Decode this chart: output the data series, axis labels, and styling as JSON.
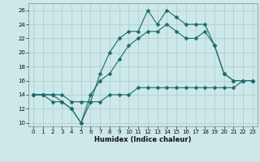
{
  "bg_color": "#cce8e8",
  "grid_color": "#aacccc",
  "line_color": "#1a6b6b",
  "line1_x": [
    0,
    1,
    2,
    3,
    4,
    5,
    6,
    7,
    8,
    9,
    10,
    11,
    12,
    13,
    14,
    15,
    16,
    17,
    18,
    19,
    20,
    21,
    22,
    23
  ],
  "line1_y": [
    14,
    14,
    14,
    13,
    12,
    10,
    13,
    17,
    20,
    22,
    23,
    23,
    26,
    24,
    26,
    25,
    24,
    24,
    24,
    21,
    17,
    16,
    16,
    16
  ],
  "line2_x": [
    0,
    1,
    2,
    3,
    4,
    5,
    6,
    7,
    8,
    9,
    10,
    11,
    12,
    13,
    14,
    15,
    16,
    17,
    18,
    19,
    20,
    21,
    22,
    23
  ],
  "line2_y": [
    14,
    14,
    13,
    13,
    12,
    10,
    14,
    16,
    17,
    19,
    21,
    22,
    23,
    23,
    24,
    23,
    22,
    22,
    23,
    21,
    17,
    16,
    16,
    16
  ],
  "line3_x": [
    0,
    1,
    2,
    3,
    4,
    5,
    6,
    7,
    8,
    9,
    10,
    11,
    12,
    13,
    14,
    15,
    16,
    17,
    18,
    19,
    20,
    21,
    22,
    23
  ],
  "line3_y": [
    14,
    14,
    14,
    14,
    13,
    13,
    13,
    13,
    14,
    14,
    14,
    15,
    15,
    15,
    15,
    15,
    15,
    15,
    15,
    15,
    15,
    15,
    16,
    16
  ],
  "xlabel": "Humidex (Indice chaleur)",
  "xlim": [
    -0.5,
    23.5
  ],
  "ylim": [
    9.5,
    27
  ],
  "yticks": [
    10,
    12,
    14,
    16,
    18,
    20,
    22,
    24,
    26
  ],
  "xticks": [
    0,
    1,
    2,
    3,
    4,
    5,
    6,
    7,
    8,
    9,
    10,
    11,
    12,
    13,
    14,
    15,
    16,
    17,
    18,
    19,
    20,
    21,
    22,
    23
  ],
  "tick_fontsize": 5.0,
  "xlabel_fontsize": 6.0,
  "marker_size": 2.5,
  "line_width": 0.8
}
